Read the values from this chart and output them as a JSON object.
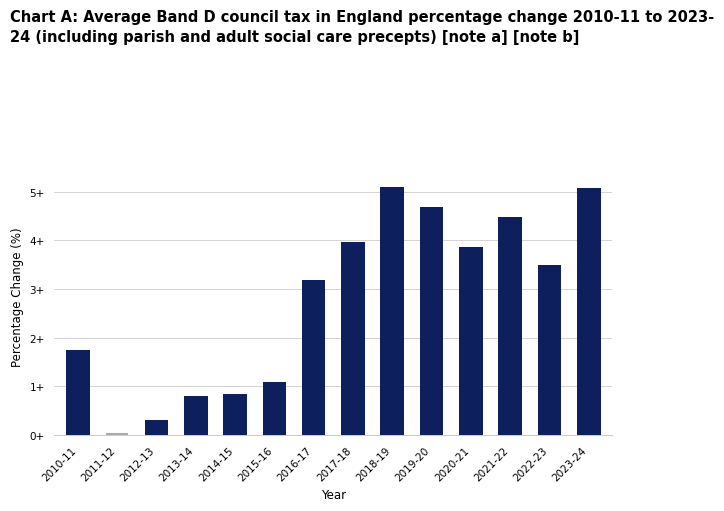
{
  "title_line1": "Chart A: Average Band D council tax in England percentage change 2010-11 to 2023-",
  "title_line2": "24 (including parish and adult social care precepts) [note a] [note b]",
  "categories": [
    "2010-11",
    "2011-12",
    "2012-13",
    "2013-14",
    "2014-15",
    "2015-16",
    "2016-17",
    "2017-18",
    "2018-19",
    "2019-20",
    "2020-21",
    "2021-22",
    "2022-23",
    "2023-24"
  ],
  "values": [
    1.75,
    0.0,
    0.3,
    0.8,
    0.85,
    1.08,
    3.18,
    3.97,
    5.1,
    4.68,
    3.87,
    4.48,
    3.5,
    5.08
  ],
  "bar_color": "#0d1f5c",
  "xlabel": "Year",
  "ylabel": "Percentage Change (%)",
  "ylim": [
    0,
    5.7
  ],
  "yticks": [
    0,
    1,
    2,
    3,
    4,
    5
  ],
  "ytick_labels": [
    "0+",
    "1+",
    "2+",
    "3+",
    "4+",
    "5+"
  ],
  "background_color": "#ffffff",
  "grid_color": "#cccccc",
  "title_fontsize": 10.5,
  "axis_label_fontsize": 8.5,
  "tick_fontsize": 7.5
}
